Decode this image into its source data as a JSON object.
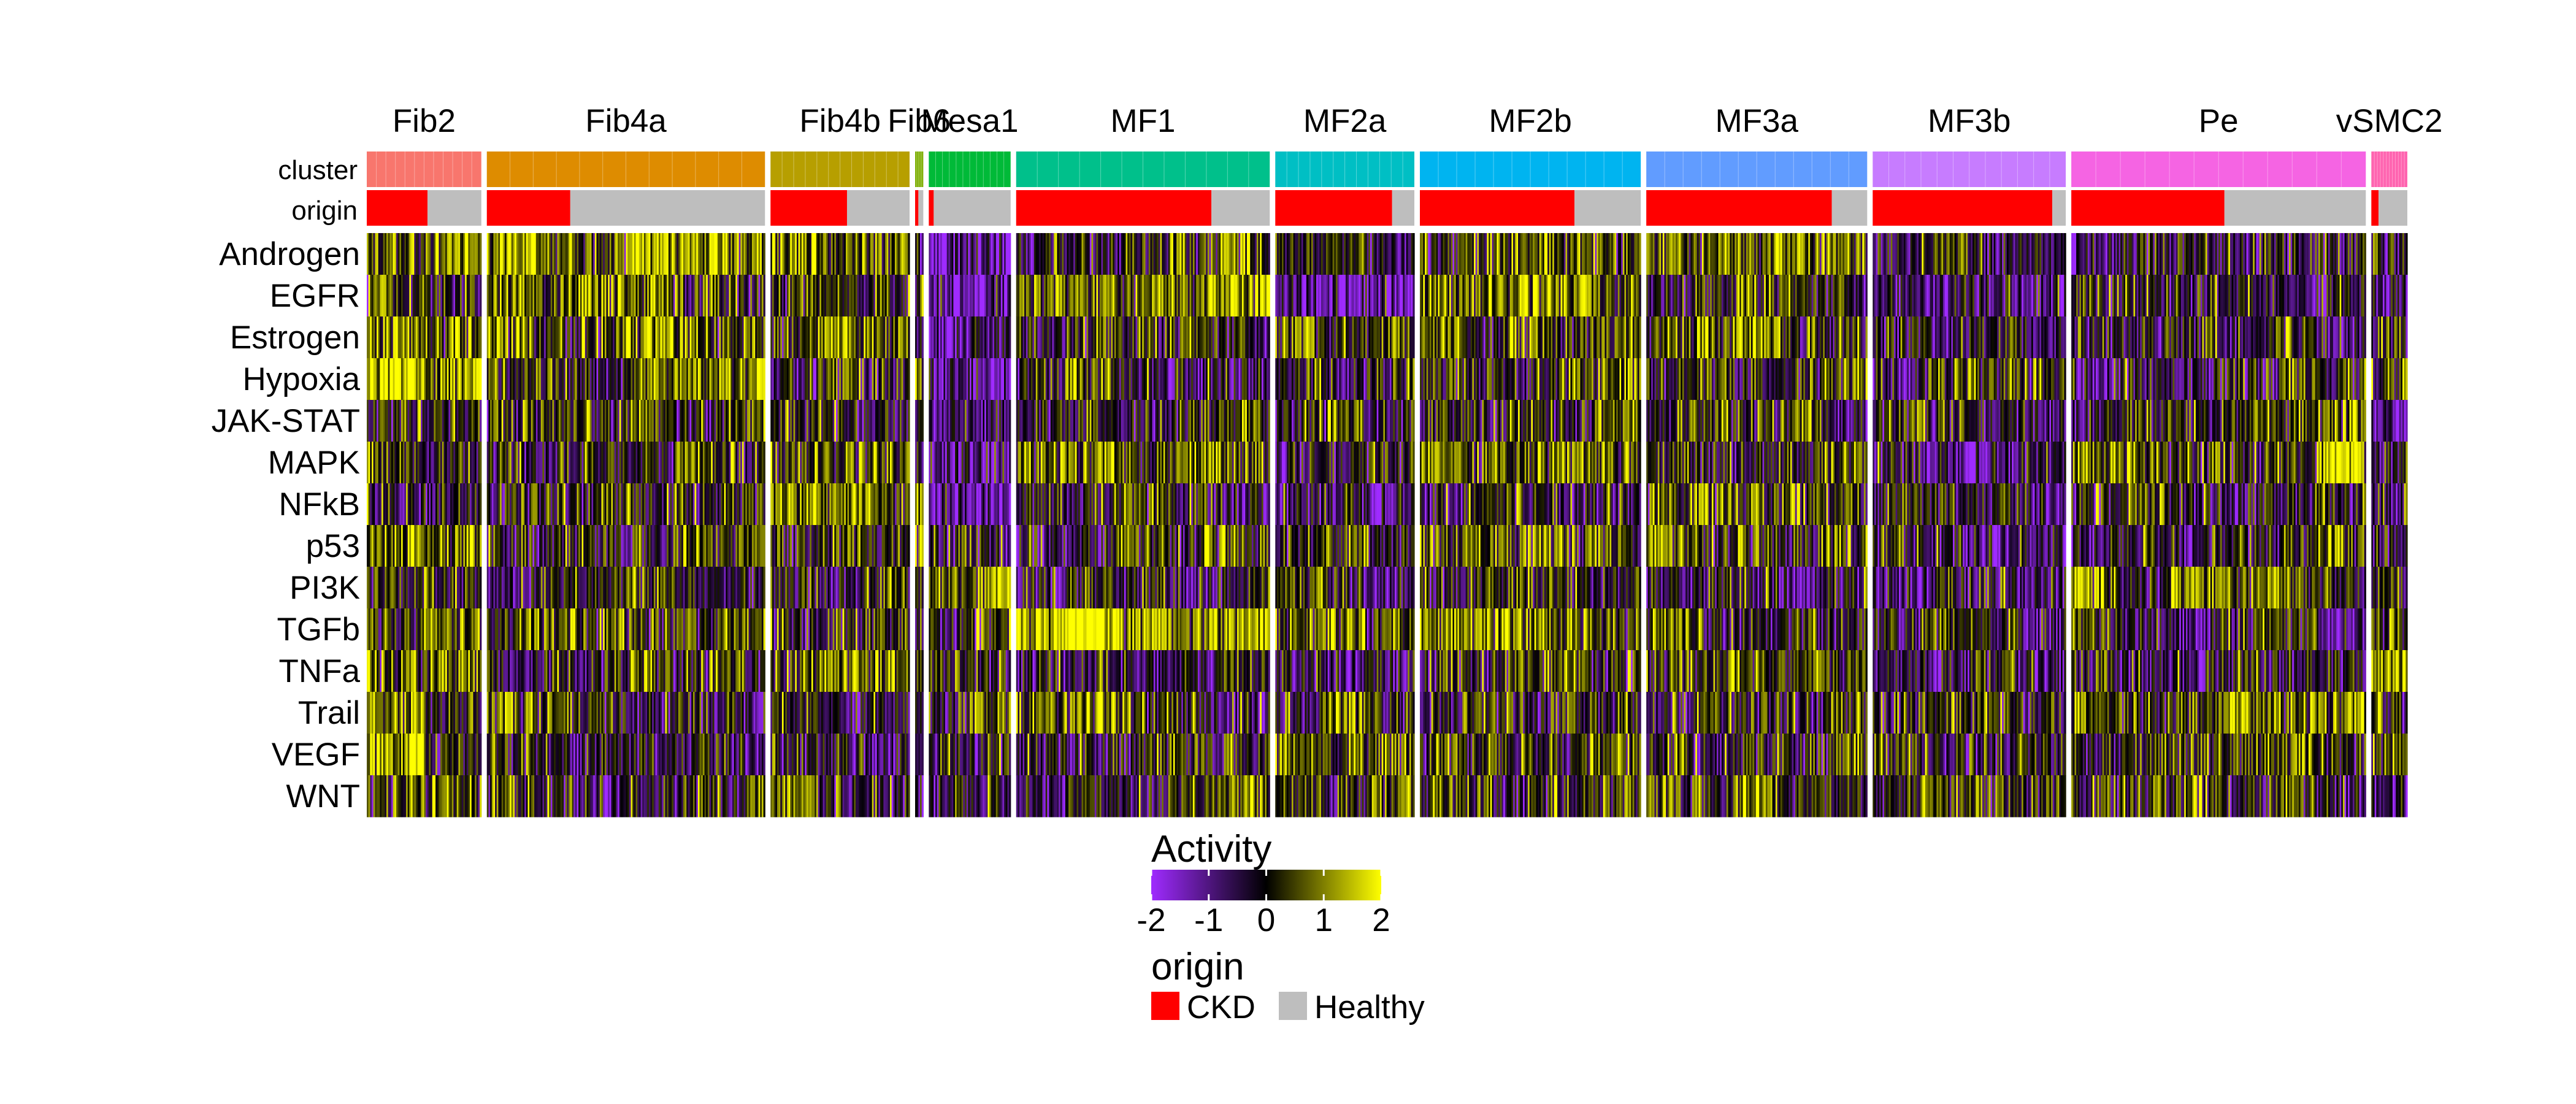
{
  "chart_data": {
    "type": "heatmap",
    "annotation_rows": [
      "cluster",
      "origin"
    ],
    "rows": [
      "Androgen",
      "EGFR",
      "Estrogen",
      "Hypoxia",
      "JAK-STAT",
      "MAPK",
      "NFkB",
      "p53",
      "PI3K",
      "TGFb",
      "TNFa",
      "Trail",
      "VEGF",
      "WNT"
    ],
    "clusters": [
      {
        "name": "Fib2",
        "color": "#F8766D",
        "cells": 70,
        "ckd_fraction": 0.53,
        "mean_activity": {
          "Androgen": 0.8,
          "EGFR": 0.4,
          "Estrogen": 0.6,
          "Hypoxia": 1.5,
          "JAK-STAT": -0.3,
          "MAPK": 0.0,
          "NFkB": 0.2,
          "p53": 0.8,
          "PI3K": 0.2,
          "TGFb": 0.2,
          "TNFa": 0.2,
          "Trail": 0.2,
          "VEGF": 0.2,
          "WNT": 0.2
        }
      },
      {
        "name": "Fib4a",
        "color": "#DE8C00",
        "cells": 170,
        "ckd_fraction": 0.3,
        "mean_activity": {
          "Androgen": 0.9,
          "EGFR": 0.6,
          "Estrogen": 0.6,
          "Hypoxia": 0.3,
          "JAK-STAT": -0.2,
          "MAPK": 0.2,
          "NFkB": 0.1,
          "p53": 0.3,
          "PI3K": 0.0,
          "TGFb": 0.5,
          "TNFa": 0.0,
          "Trail": 0.1,
          "VEGF": 0.1,
          "WNT": 0.1
        }
      },
      {
        "name": "Fib4b",
        "color": "#B79F00",
        "cells": 85,
        "ckd_fraction": 0.55,
        "mean_activity": {
          "Androgen": 0.6,
          "EGFR": 0.5,
          "Estrogen": 0.4,
          "Hypoxia": 0.2,
          "JAK-STAT": 0.0,
          "MAPK": 0.7,
          "NFkB": 0.7,
          "p53": 0.4,
          "PI3K": 0.4,
          "TGFb": 0.1,
          "TNFa": 0.5,
          "Trail": -0.1,
          "VEGF": -0.2,
          "WNT": 0.2
        }
      },
      {
        "name": "Fib6",
        "color": "#7CAE00",
        "cells": 5,
        "ckd_fraction": 0.4,
        "mean_activity": {
          "Androgen": 0.4,
          "EGFR": 0.0,
          "Estrogen": 0.2,
          "Hypoxia": 0.3,
          "JAK-STAT": 0.0,
          "MAPK": 0.3,
          "NFkB": 0.4,
          "p53": 0.2,
          "PI3K": 0.3,
          "TGFb": 0.2,
          "TNFa": 0.2,
          "Trail": 0.1,
          "VEGF": 0.1,
          "WNT": 0.1
        }
      },
      {
        "name": "Mesa1",
        "color": "#00BA38",
        "cells": 50,
        "ckd_fraction": 0.06,
        "mean_activity": {
          "Androgen": -1.4,
          "EGFR": -1.4,
          "Estrogen": -1.5,
          "Hypoxia": -0.8,
          "JAK-STAT": -0.7,
          "MAPK": -1.3,
          "NFkB": -0.7,
          "p53": -0.4,
          "PI3K": 0.3,
          "TGFb": 0.0,
          "TNFa": -0.4,
          "Trail": 0.3,
          "VEGF": 0.0,
          "WNT": -0.4
        }
      },
      {
        "name": "MF1",
        "color": "#00C08B",
        "cells": 155,
        "ckd_fraction": 0.77,
        "mean_activity": {
          "Androgen": 0.0,
          "EGFR": 0.9,
          "Estrogen": 0.1,
          "Hypoxia": 0.0,
          "JAK-STAT": -0.1,
          "MAPK": 0.9,
          "NFkB": -0.3,
          "p53": 0.1,
          "PI3K": -0.2,
          "TGFb": 1.7,
          "TNFa": -0.4,
          "Trail": 0.0,
          "VEGF": 0.0,
          "WNT": 0.0
        }
      },
      {
        "name": "MF2a",
        "color": "#00BFC4",
        "cells": 85,
        "ckd_fraction": 0.84,
        "mean_activity": {
          "Androgen": 0.0,
          "EGFR": -0.9,
          "Estrogen": 0.2,
          "Hypoxia": 0.1,
          "JAK-STAT": 0.0,
          "MAPK": -0.9,
          "NFkB": -0.3,
          "p53": 0.5,
          "PI3K": 0.0,
          "TGFb": 0.4,
          "TNFa": -0.5,
          "Trail": 0.0,
          "VEGF": 0.2,
          "WNT": 0.3
        }
      },
      {
        "name": "MF2b",
        "color": "#00B4F0",
        "cells": 135,
        "ckd_fraction": 0.7,
        "mean_activity": {
          "Androgen": 0.7,
          "EGFR": 0.8,
          "Estrogen": 0.5,
          "Hypoxia": 0.5,
          "JAK-STAT": 0.0,
          "MAPK": 0.9,
          "NFkB": 0.2,
          "p53": 0.7,
          "PI3K": 0.0,
          "TGFb": 0.8,
          "TNFa": -0.1,
          "Trail": 0.1,
          "VEGF": 0.3,
          "WNT": 0.1
        }
      },
      {
        "name": "MF3a",
        "color": "#619CFF",
        "cells": 135,
        "ckd_fraction": 0.84,
        "mean_activity": {
          "Androgen": 0.6,
          "EGFR": 0.3,
          "Estrogen": 0.6,
          "Hypoxia": 0.3,
          "JAK-STAT": 0.0,
          "MAPK": 0.2,
          "NFkB": 0.5,
          "p53": 0.3,
          "PI3K": -0.3,
          "TGFb": -0.2,
          "TNFa": 0.4,
          "Trail": 0.0,
          "VEGF": 0.2,
          "WNT": 0.1
        }
      },
      {
        "name": "MF3b",
        "color": "#C77CFF",
        "cells": 118,
        "ckd_fraction": 0.93,
        "mean_activity": {
          "Androgen": -0.3,
          "EGFR": -0.6,
          "Estrogen": -0.3,
          "Hypoxia": -0.2,
          "JAK-STAT": -0.2,
          "MAPK": -0.5,
          "NFkB": -0.1,
          "p53": -0.2,
          "PI3K": -0.4,
          "TGFb": -0.4,
          "TNFa": -0.3,
          "Trail": 0.0,
          "VEGF": 0.0,
          "WNT": 0.0
        }
      },
      {
        "name": "Pe",
        "color": "#F564E3",
        "cells": 180,
        "ckd_fraction": 0.52,
        "mean_activity": {
          "Androgen": -0.2,
          "EGFR": -0.1,
          "Estrogen": 0.0,
          "Hypoxia": 0.0,
          "JAK-STAT": 0.1,
          "MAPK": 0.4,
          "NFkB": 0.0,
          "p53": -0.3,
          "PI3K": 0.6,
          "TGFb": -0.2,
          "TNFa": -0.3,
          "Trail": 0.6,
          "VEGF": 0.3,
          "WNT": 0.2
        }
      },
      {
        "name": "vSMC2",
        "color": "#FF64B0",
        "cells": 22,
        "ckd_fraction": 0.2,
        "mean_activity": {
          "Androgen": -0.8,
          "EGFR": -0.2,
          "Estrogen": 0.0,
          "Hypoxia": 0.0,
          "JAK-STAT": -0.7,
          "MAPK": -0.6,
          "NFkB": 0.0,
          "p53": -0.1,
          "PI3K": 0.4,
          "TGFb": 0.0,
          "TNFa": 0.0,
          "Trail": 0.0,
          "VEGF": 0.2,
          "WNT": 0.0
        }
      }
    ],
    "color_scale": {
      "title": "Activity",
      "range": [
        -2,
        2
      ],
      "ticks": [
        "-2",
        "-1",
        "0",
        "1",
        "2"
      ],
      "colors": [
        "#9F2BFF",
        "#000000",
        "#FFFF00"
      ]
    },
    "origin_legend": {
      "title": "origin",
      "items": [
        {
          "label": "CKD",
          "color": "#FF0000"
        },
        {
          "label": "Healthy",
          "color": "#BEBEBE"
        }
      ]
    }
  }
}
